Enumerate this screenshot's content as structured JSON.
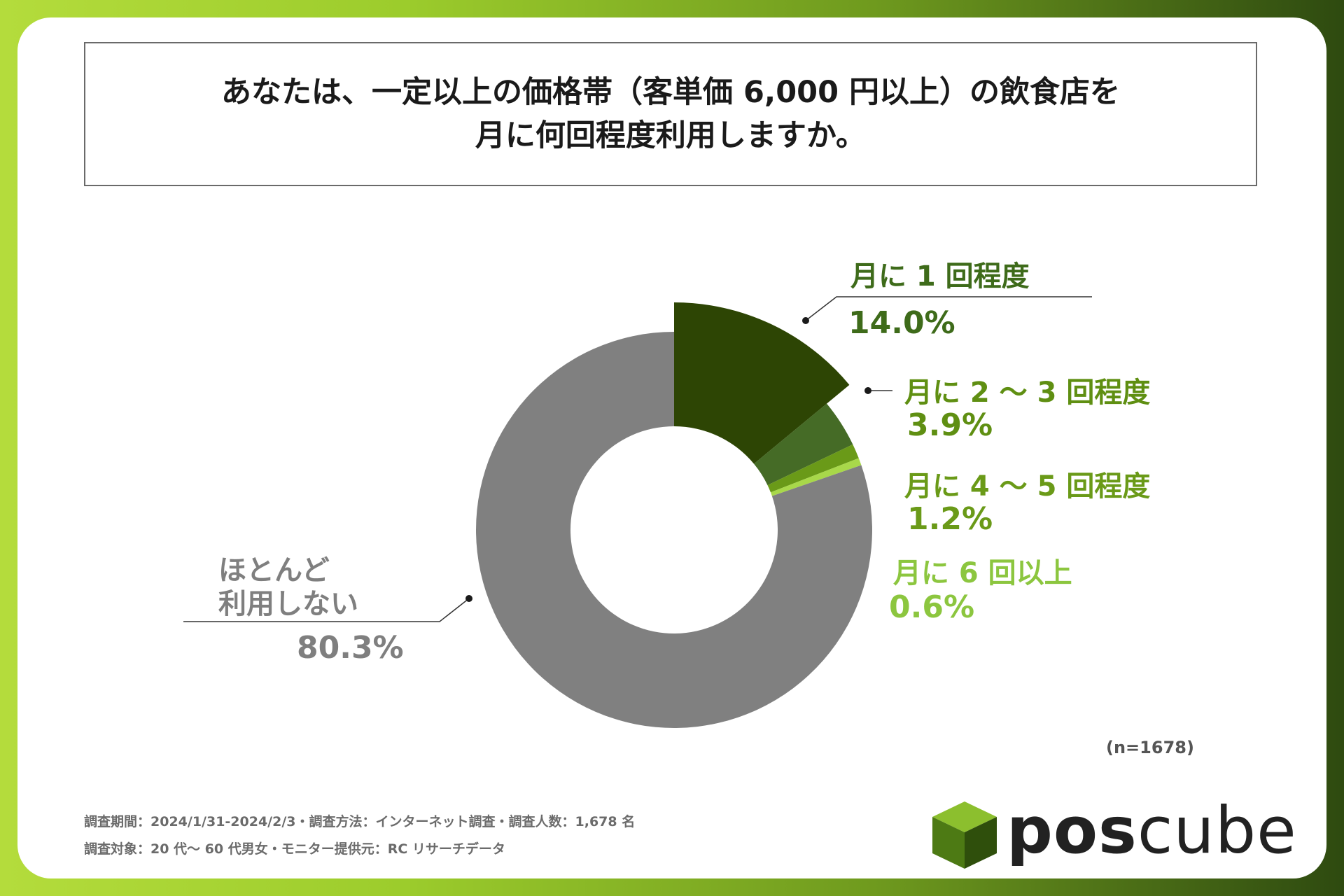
{
  "title": {
    "line1": "あなたは、一定以上の価格帯（客単価 6,000 円以上）の飲食店を",
    "line2": "月に何回程度利用しますか。"
  },
  "chart_data": {
    "type": "pie",
    "variant": "donut",
    "title": "あなたは、一定以上の価格帯（客単価 6,000 円以上）の飲食店を月に何回程度利用しますか。",
    "unit": "%",
    "slices": [
      {
        "label": "月に 1 回程度",
        "value": 14.0,
        "value_label": "14.0%",
        "color": "#2d4504"
      },
      {
        "label": "月に 2 ～ 3 回程度",
        "value": 3.9,
        "value_label": "3.9%",
        "color": "#456b26"
      },
      {
        "label": "月に 4 ～ 5 回程度",
        "value": 1.2,
        "value_label": "1.2%",
        "color": "#6a9a18"
      },
      {
        "label": "月に 6 回以上",
        "value": 0.6,
        "value_label": "0.6%",
        "color": "#a8d84a"
      },
      {
        "label_line1": "ほとんど",
        "label_line2": "利用しない",
        "value": 80.3,
        "value_label": "80.3%",
        "color": "#808080"
      }
    ],
    "sample_size": "(n=1678)"
  },
  "footer": {
    "line1": "調査期間：2024/1/31-2024/2/3・調査方法：インターネット調査・調査人数：1,678 名",
    "line2": "調査対象：20 代～ 60 代男女・モニター提供元：RC リサーチデータ"
  },
  "logo": {
    "bold_part": "pos",
    "light_part": "cube"
  },
  "colors": {
    "label_dark": "#3e6b1a",
    "label_mid": "#5f8f12",
    "label_light": "#8cc63f",
    "label_gray": "#7f7f7f"
  }
}
